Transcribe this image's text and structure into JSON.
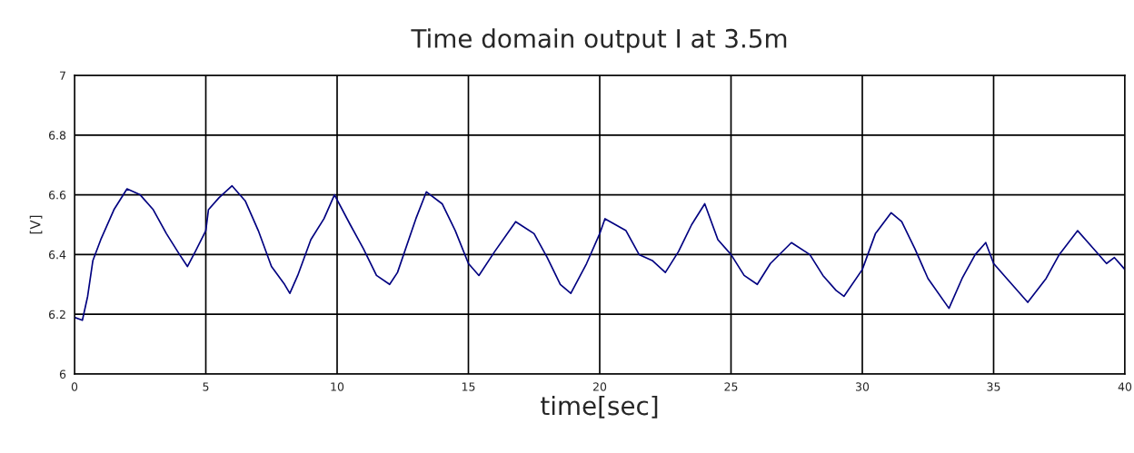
{
  "chart_data": {
    "type": "line",
    "title": "Time domain output I at 3.5m",
    "xlabel": "time[sec]",
    "ylabel": "[V]",
    "series": [
      {
        "color": "#000080",
        "x": [
          0,
          0.3,
          0.5,
          0.7,
          1.0,
          1.5,
          2.0,
          2.5,
          3.0,
          3.5,
          4.0,
          4.3,
          4.6,
          5.0,
          5.1,
          5.5,
          6.0,
          6.5,
          7.0,
          7.5,
          8.0,
          8.2,
          8.5,
          9.0,
          9.5,
          9.9,
          10.5,
          11.0,
          11.5,
          12.0,
          12.3,
          13.0,
          13.4,
          14.0,
          14.5,
          15.0,
          15.4,
          16.0,
          16.8,
          17.5,
          18.0,
          18.5,
          18.9,
          19.5,
          20.0,
          20.2,
          21.0,
          21.5,
          22.0,
          22.5,
          23.0,
          23.5,
          24.0,
          24.5,
          25.0,
          25.5,
          26.0,
          26.5,
          27.3,
          28.0,
          28.5,
          29.0,
          29.3,
          30.0,
          30.5,
          31.1,
          31.5,
          32.0,
          32.5,
          33.3,
          33.8,
          34.3,
          34.7,
          35.0,
          35.5,
          36.3,
          37.0,
          37.5,
          38.2,
          38.7,
          39.3,
          39.6,
          40
        ],
        "values": [
          6.19,
          6.18,
          6.26,
          6.38,
          6.45,
          6.55,
          6.62,
          6.6,
          6.55,
          6.47,
          6.4,
          6.36,
          6.41,
          6.48,
          6.55,
          6.59,
          6.63,
          6.58,
          6.48,
          6.36,
          6.3,
          6.27,
          6.33,
          6.45,
          6.52,
          6.6,
          6.5,
          6.42,
          6.33,
          6.3,
          6.34,
          6.52,
          6.61,
          6.57,
          6.48,
          6.37,
          6.33,
          6.41,
          6.51,
          6.47,
          6.39,
          6.3,
          6.27,
          6.37,
          6.47,
          6.52,
          6.48,
          6.4,
          6.38,
          6.34,
          6.41,
          6.5,
          6.57,
          6.45,
          6.4,
          6.33,
          6.3,
          6.37,
          6.44,
          6.4,
          6.33,
          6.28,
          6.26,
          6.35,
          6.47,
          6.54,
          6.51,
          6.42,
          6.32,
          6.22,
          6.32,
          6.4,
          6.44,
          6.37,
          6.32,
          6.24,
          6.32,
          6.4,
          6.48,
          6.43,
          6.37,
          6.39,
          6.35
        ]
      }
    ],
    "xlim": [
      0,
      40
    ],
    "ylim": [
      6,
      7
    ],
    "xticks": [
      0,
      5,
      10,
      15,
      20,
      25,
      30,
      35,
      40
    ],
    "yticks": [
      6,
      6.2,
      6.4,
      6.6,
      6.8,
      7
    ],
    "grid": true,
    "line_style": "solid",
    "marker": "none"
  }
}
